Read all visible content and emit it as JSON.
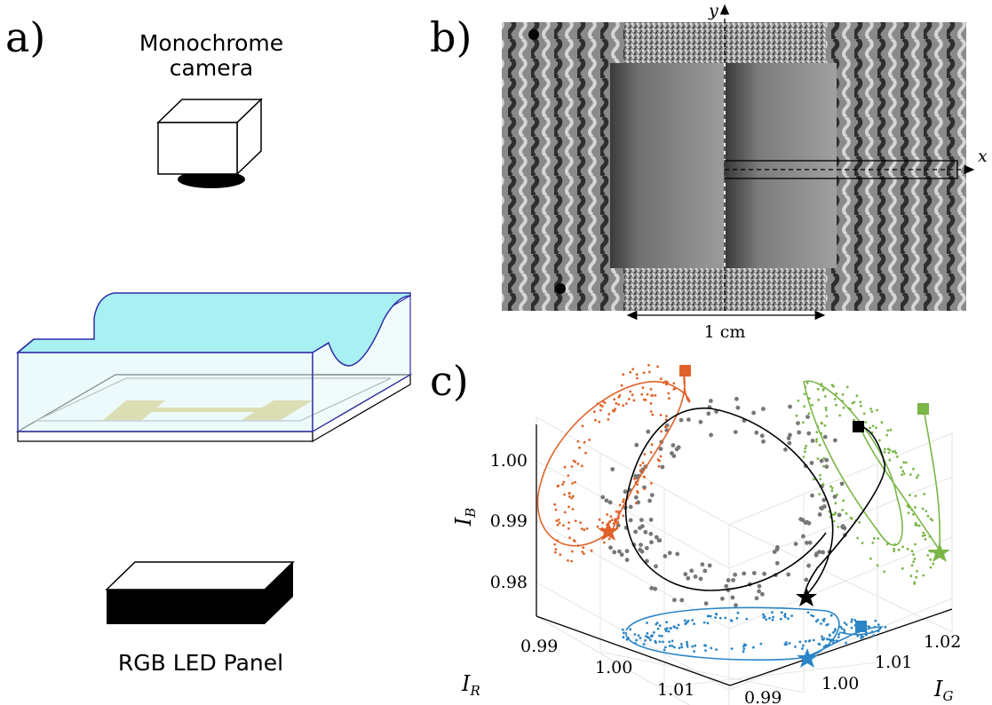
{
  "panels": {
    "a": {
      "letter": "a)",
      "camera_label_line1": "Monochrome",
      "camera_label_line2": "camera",
      "led_label": "RGB LED Panel"
    },
    "b": {
      "letter": "b)",
      "axis_x": "x",
      "axis_y": "y",
      "scale_label": "1 cm"
    },
    "c": {
      "letter": "c)",
      "axis_labels": {
        "blue": {
          "main": "I",
          "sub": "B"
        },
        "red": {
          "main": "I",
          "sub": "R"
        },
        "green": {
          "main": "I",
          "sub": "G"
        }
      },
      "ticks_b": [
        "1.00",
        "0.99",
        "0.98"
      ],
      "ticks_r": [
        "0.99",
        "1.00",
        "1.01"
      ],
      "ticks_g": [
        "1.02",
        "1.01",
        "1.00",
        "0.99"
      ]
    }
  },
  "colors": {
    "water": "#a8f0f2",
    "tank_outline": "#2e2ea8",
    "electrode": "#d8c060",
    "red_projection": "#e0622a",
    "green_projection": "#7ab648",
    "blue_projection": "#2a84c6",
    "trajectory": "#000000",
    "scatter_points": "#777777"
  },
  "markers": {
    "start": "square-marker",
    "end": "star-marker"
  }
}
